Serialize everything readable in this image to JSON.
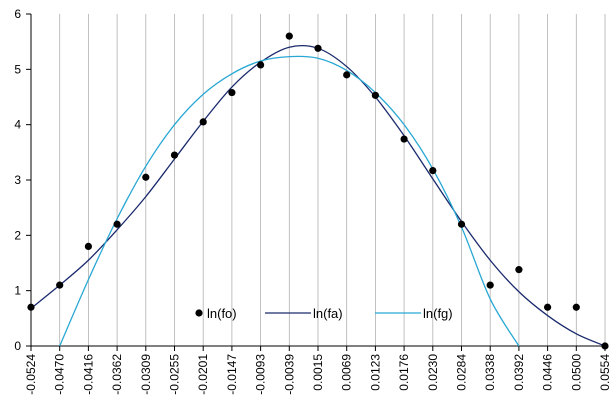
{
  "chart_data": {
    "type": "scatter",
    "x_categories": [
      "-0.0524",
      "-0.0470",
      "-0.0416",
      "-0.0362",
      "-0.0309",
      "-0.0255",
      "-0.0201",
      "-0.0147",
      "-0.0093",
      "-0.0039",
      "0.0015",
      "0.0069",
      "0.0123",
      "0.0176",
      "0.0230",
      "0.0284",
      "0.0338",
      "0.0392",
      "0.0446",
      "0.0500",
      "0.0554"
    ],
    "ylim": [
      0,
      6
    ],
    "y_ticks": [
      "0",
      "1",
      "2",
      "3",
      "4",
      "5",
      "6"
    ],
    "grid": "vertical lines at each category",
    "legend_position": "lower-center",
    "series": [
      {
        "name": "ln(fo)",
        "kind": "points",
        "color": "#000000",
        "values": [
          0.7,
          1.1,
          1.8,
          2.2,
          3.05,
          3.45,
          4.05,
          4.58,
          5.08,
          5.6,
          5.38,
          4.9,
          4.53,
          3.74,
          3.17,
          2.2,
          1.1,
          1.38,
          0.7,
          0.7,
          0.0
        ]
      },
      {
        "name": "ln(fa)",
        "kind": "line",
        "color": "#1a2a6c",
        "values": [
          0.68,
          1.1,
          1.55,
          2.1,
          2.7,
          3.38,
          4.06,
          4.68,
          5.13,
          5.4,
          5.38,
          5.05,
          4.5,
          3.8,
          3.02,
          2.25,
          1.55,
          0.98,
          0.55,
          0.22,
          0.0
        ]
      },
      {
        "name": "ln(fg)",
        "kind": "line",
        "color": "#29a8d4",
        "values": [
          null,
          0.0,
          1.2,
          2.3,
          3.25,
          4.0,
          4.55,
          4.92,
          5.15,
          5.23,
          5.2,
          4.98,
          4.58,
          4.0,
          3.2,
          2.15,
          0.85,
          0.0,
          null,
          null,
          null
        ]
      }
    ]
  }
}
